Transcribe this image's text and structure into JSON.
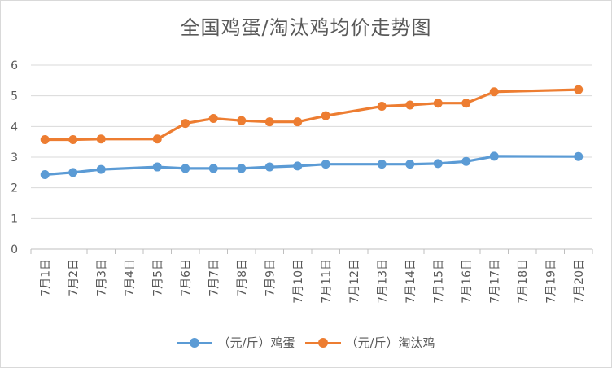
{
  "chart_data": {
    "type": "line",
    "title": "全国鸡蛋/淘汰鸡均价走势图",
    "categories": [
      "7月1日",
      "7月2日",
      "7月3日",
      "7月4日",
      "7月5日",
      "7月6日",
      "7月7日",
      "7月8日",
      "7月9日",
      "7月10日",
      "7月11日",
      "7月12日",
      "7月13日",
      "7月14日",
      "7月15日",
      "7月16日",
      "7月17日",
      "7月18日",
      "7月19日",
      "7月20日"
    ],
    "series": [
      {
        "name": "（元/斤）鸡蛋",
        "color": "#5b9bd5",
        "values": [
          2.43,
          2.5,
          2.6,
          null,
          2.68,
          2.63,
          2.63,
          2.63,
          2.68,
          2.71,
          2.77,
          null,
          2.77,
          2.77,
          2.79,
          2.86,
          3.03,
          null,
          null,
          3.02
        ]
      },
      {
        "name": "（元/斤）淘汰鸡",
        "color": "#ed7d31",
        "values": [
          3.57,
          3.57,
          3.59,
          null,
          3.59,
          4.1,
          4.26,
          4.19,
          4.15,
          4.15,
          4.35,
          null,
          4.66,
          4.7,
          4.76,
          4.76,
          5.13,
          null,
          null,
          5.2
        ]
      }
    ],
    "ylim": [
      0,
      6
    ],
    "yticks": [
      0,
      1,
      2,
      3,
      4,
      5,
      6
    ],
    "grid": true,
    "legend": "bottom"
  }
}
